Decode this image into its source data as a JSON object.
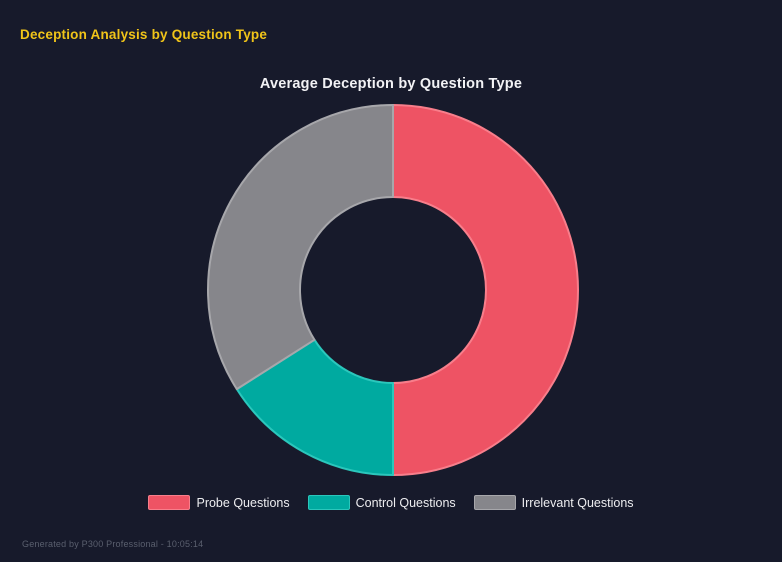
{
  "page": {
    "background": "#171A2B",
    "header": {
      "title": "Deception Analysis by Question Type",
      "color": "#F0C419"
    },
    "footer": {
      "text": "Generated by P300 Professional - 10:05:14"
    }
  },
  "chart_data": {
    "type": "pie",
    "variant": "donut",
    "title": "Average Deception by Question Type",
    "categories": [
      "Probe Questions",
      "Control Questions",
      "Irrelevant Questions"
    ],
    "values": [
      50,
      16,
      34
    ],
    "value_unit": "percent of ring, estimated from arc angles",
    "colors": [
      "#EE5364",
      "#00AAA0",
      "#86868B"
    ],
    "border_colors": [
      "#F87E8B",
      "#2BC7BC",
      "#A7A7AB"
    ],
    "cutout_ratio": 0.5,
    "start_angle_deg": 0,
    "direction": "clockwise",
    "legend_position": "bottom",
    "title_color": "#F2F2F5",
    "legend_text_color": "#EDEDF0"
  }
}
